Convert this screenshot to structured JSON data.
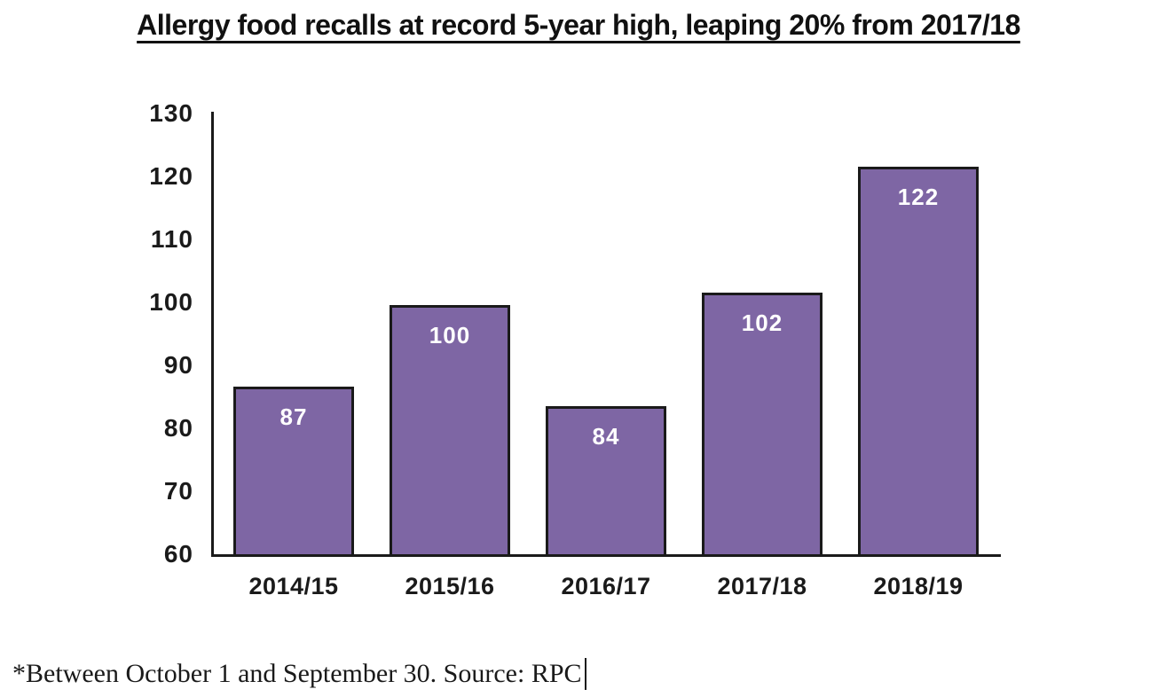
{
  "title": "Allergy food recalls at record 5-year high, leaping 20% from 2017/18",
  "footnote": "*Between October 1 and September 30. Source: RPC",
  "chart_data": {
    "type": "bar",
    "title": "Allergy food recalls at record 5-year high, leaping 20% from 2017/18",
    "categories": [
      "2014/15",
      "2015/16",
      "2016/17",
      "2017/18",
      "2018/19"
    ],
    "values": [
      87,
      100,
      84,
      102,
      122
    ],
    "xlabel": "",
    "ylabel": "",
    "ylim": [
      60,
      130
    ],
    "yticks": [
      60,
      70,
      80,
      90,
      100,
      110,
      120,
      130
    ],
    "grid": false,
    "legend": false,
    "value_labels": "inside-top",
    "annotation": "*Between October 1 and September 30. Source: RPC"
  },
  "colors": {
    "bar_fill": "#7E66A4",
    "bar_border": "#1a1a1a",
    "axis": "#1a1a1a",
    "value_label_text": "#ffffff",
    "text": "#1a1a1a",
    "background": "#ffffff"
  }
}
